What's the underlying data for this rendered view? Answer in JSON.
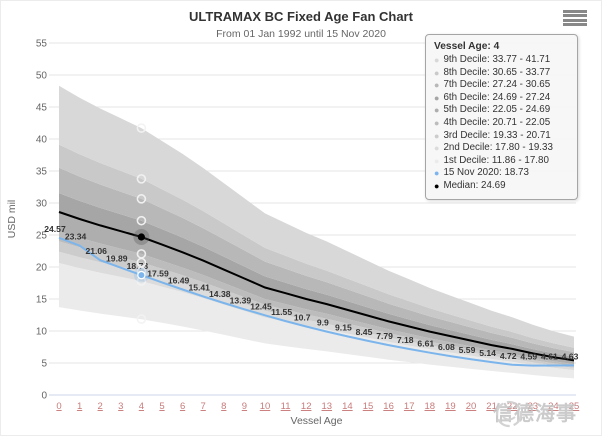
{
  "header": {
    "title": "ULTRAMAX BC Fixed Age Fan Chart",
    "subtitle": "From 01 Jan 1992 until 15 Nov 2020"
  },
  "watermark": {
    "text": "信德海事"
  },
  "chart_data": {
    "type": "area",
    "title": "ULTRAMAX BC Fixed Age Fan Chart",
    "subtitle": "From 01 Jan 1992 until 15 Nov 2020",
    "xlabel": "Vessel Age",
    "ylabel": "USD mil",
    "xlim": [
      0,
      25
    ],
    "ylim": [
      0,
      55
    ],
    "x_ticks": [
      0,
      1,
      2,
      3,
      4,
      5,
      6,
      7,
      8,
      9,
      10,
      11,
      12,
      13,
      14,
      15,
      16,
      17,
      18,
      19,
      20,
      21,
      22,
      23,
      24,
      25
    ],
    "y_ticks": [
      0,
      5,
      10,
      15,
      20,
      25,
      30,
      35,
      40,
      45,
      50,
      55
    ],
    "grid": true,
    "ages": [
      0,
      1,
      2,
      3,
      4,
      5,
      6,
      7,
      8,
      9,
      10,
      11,
      12,
      13,
      14,
      15,
      16,
      17,
      18,
      19,
      20,
      21,
      22,
      23,
      24,
      25
    ],
    "series": [
      {
        "name": "15 Nov 2020",
        "color": "#7cb5ec",
        "show_labels": true,
        "values": [
          24.57,
          23.34,
          21.06,
          19.89,
          18.73,
          17.59,
          16.49,
          15.41,
          14.38,
          13.39,
          12.45,
          11.55,
          10.7,
          9.9,
          9.15,
          8.45,
          7.79,
          7.18,
          6.61,
          6.08,
          5.59,
          5.14,
          4.72,
          4.59,
          4.61,
          4.63
        ]
      },
      {
        "name": "Median",
        "color": "#000000",
        "show_labels": false,
        "values": [
          28.6,
          27.5,
          26.5,
          25.6,
          24.69,
          23.5,
          22.3,
          21.0,
          19.6,
          18.2,
          16.8,
          15.9,
          15.0,
          14.2,
          13.3,
          12.4,
          11.5,
          10.7,
          9.9,
          9.2,
          8.5,
          7.8,
          7.2,
          6.5,
          5.9,
          5.4
        ]
      }
    ],
    "bands": [
      {
        "name": "1st Decile",
        "color": "#ebebeb",
        "lo": 0.48,
        "hi": 0.721
      },
      {
        "name": "2nd Decile",
        "color": "#dcdcdc",
        "lo": 0.721,
        "hi": 0.783
      },
      {
        "name": "3rd Decile",
        "color": "#cccccc",
        "lo": 0.783,
        "hi": 0.839
      },
      {
        "name": "4th Decile",
        "color": "#bcbcbc",
        "lo": 0.839,
        "hi": 0.893
      },
      {
        "name": "5th Decile",
        "color": "#aeaeae",
        "lo": 0.893,
        "hi": 1.0
      },
      {
        "name": "6th Decile",
        "color": "#a6a6a6",
        "lo": 1.0,
        "hi": 1.103
      },
      {
        "name": "7th Decile",
        "color": "#b8b8b8",
        "lo": 1.103,
        "hi": 1.241
      },
      {
        "name": "8th Decile",
        "color": "#c9c9c9",
        "lo": 1.241,
        "hi": 1.368
      },
      {
        "name": "9th Decile",
        "color": "#d8d8d8",
        "lo": 1.368,
        "hi": 1.689
      }
    ],
    "hover": {
      "age": 4,
      "circle_values": [
        41.71,
        33.77,
        30.65,
        27.24,
        22.05,
        20.71,
        19.33,
        17.8,
        11.86
      ],
      "median_dot": 24.69,
      "line_dot": 18.73
    },
    "tooltip": {
      "title": "Vessel Age: 4",
      "rows": [
        {
          "text": "9th Decile: 33.77 - 41.71",
          "color": "#d8d8d8"
        },
        {
          "text": "8th Decile: 30.65 - 33.77",
          "color": "#c9c9c9"
        },
        {
          "text": "7th Decile: 27.24 - 30.65",
          "color": "#b8b8b8"
        },
        {
          "text": "6th Decile: 24.69 - 27.24",
          "color": "#a6a6a6"
        },
        {
          "text": "5th Decile: 22.05 - 24.69",
          "color": "#aeaeae"
        },
        {
          "text": "4th Decile: 20.71 - 22.05",
          "color": "#bcbcbc"
        },
        {
          "text": "3rd Decile: 19.33 - 20.71",
          "color": "#cccccc"
        },
        {
          "text": "2nd Decile: 17.80 - 19.33",
          "color": "#dcdcdc"
        },
        {
          "text": "1st Decile: 11.86 - 17.80",
          "color": "#ebebeb"
        },
        {
          "text": "15 Nov 2020: 18.73",
          "color": "#7cb5ec"
        },
        {
          "text": "Median: 24.69",
          "color": "#000000"
        }
      ]
    },
    "colors": {
      "grid": "#e6e6e6",
      "axis_line": "#ccd6eb",
      "y_tick_label": "#666666",
      "x_tick_label": "#c97b7b",
      "axis_title": "#666666",
      "data_label": "#333333"
    }
  }
}
